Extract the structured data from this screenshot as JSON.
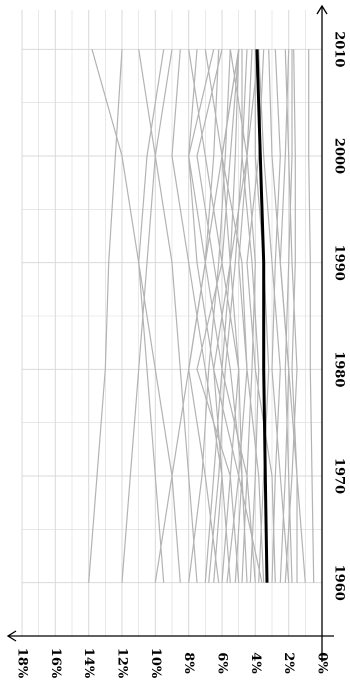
{
  "chart_data": {
    "type": "line",
    "orientation": "rotated-90-clockwise",
    "title": "",
    "xlabel": "",
    "ylabel": "",
    "x": [
      1960,
      1970,
      1980,
      1990,
      2000,
      2010
    ],
    "x_tick_labels": [
      "1960",
      "1970",
      "1980",
      "1990",
      "2000",
      "2010"
    ],
    "xlim": [
      1955,
      2012
    ],
    "y_tick_labels": [
      "0%",
      "2%",
      "4%",
      "6%",
      "8%",
      "10%",
      "12%",
      "14%",
      "16%",
      "18%"
    ],
    "ylim": [
      0,
      18
    ],
    "grid": true,
    "legend": "none",
    "colors": {
      "background_series": "#b3b3b3",
      "highlight_series": "#000000",
      "grid": "#d9d9d9",
      "axis": "#000000"
    },
    "highlight_series": {
      "values": [
        3.3,
        3.4,
        3.5,
        3.5,
        3.7,
        3.9
      ]
    },
    "series": [
      {
        "values": [
          14.0,
          null,
          13.0,
          12.8,
          null,
          12.0
        ]
      },
      {
        "values": [
          12.0,
          11.5,
          11.0,
          10.5,
          10.0,
          9.0
        ]
      },
      {
        "values": [
          9.5,
          10.0,
          10.5,
          11.0,
          12.0,
          13.8
        ]
      },
      {
        "values": [
          10.0,
          9.0,
          8.0,
          7.0,
          6.0,
          5.0
        ]
      },
      {
        "values": [
          8.5,
          9.0,
          10.0,
          11.0,
          10.5,
          9.5
        ]
      },
      {
        "values": [
          7.5,
          8.0,
          8.5,
          9.0,
          10.0,
          11.0
        ]
      },
      {
        "values": [
          7.0,
          6.5,
          6.0,
          5.5,
          5.2,
          5.0
        ]
      },
      {
        "values": [
          6.5,
          6.0,
          7.0,
          8.0,
          9.0,
          8.5
        ]
      },
      {
        "values": [
          6.2,
          7.0,
          8.0,
          7.0,
          6.5,
          6.2
        ]
      },
      {
        "values": [
          6.0,
          5.5,
          5.0,
          6.0,
          7.0,
          8.0
        ]
      },
      {
        "values": [
          5.7,
          5.0,
          4.5,
          4.8,
          6.0,
          7.0
        ]
      },
      {
        "values": [
          5.5,
          6.0,
          6.5,
          7.5,
          8.0,
          6.5
        ]
      },
      {
        "values": [
          5.2,
          4.8,
          5.5,
          6.5,
          7.5,
          6.0
        ]
      },
      {
        "values": [
          5.0,
          5.5,
          7.5,
          6.0,
          5.5,
          5.0
        ]
      },
      {
        "values": [
          4.8,
          4.5,
          4.2,
          4.0,
          4.5,
          5.5
        ]
      },
      {
        "values": [
          4.5,
          4.8,
          5.0,
          5.5,
          6.0,
          5.0
        ]
      },
      {
        "values": [
          4.3,
          4.0,
          3.8,
          4.2,
          4.8,
          4.5
        ]
      },
      {
        "values": [
          4.0,
          4.5,
          6.0,
          7.0,
          8.0,
          7.5
        ]
      },
      {
        "values": [
          3.8,
          3.5,
          3.2,
          3.5,
          4.0,
          4.0
        ]
      },
      {
        "values": [
          3.5,
          3.8,
          4.5,
          5.0,
          4.5,
          3.8
        ]
      },
      {
        "values": [
          3.0,
          2.8,
          2.5,
          3.0,
          3.5,
          3.8
        ]
      },
      {
        "values": [
          2.8,
          3.0,
          4.0,
          4.5,
          3.8,
          3.5
        ]
      },
      {
        "values": [
          2.5,
          2.2,
          2.0,
          2.5,
          3.0,
          3.2
        ]
      },
      {
        "values": [
          2.0,
          2.5,
          3.0,
          2.8,
          2.5,
          2.8
        ]
      },
      {
        "values": [
          2.2,
          1.8,
          1.5,
          1.8,
          2.0,
          2.2
        ]
      },
      {
        "values": [
          1.8,
          2.0,
          2.2,
          2.0,
          1.8,
          1.8
        ]
      },
      {
        "values": [
          1.5,
          1.5,
          1.8,
          1.6,
          1.6,
          1.7
        ]
      },
      {
        "values": [
          1.0,
          1.5,
          2.0,
          2.5,
          2.2,
          2.0
        ]
      },
      {
        "values": [
          0.5,
          0.6,
          0.7,
          0.7,
          0.8,
          0.8
        ]
      },
      {
        "values": [
          3.6,
          5.0,
          6.5,
          5.5,
          4.5,
          4.2
        ]
      },
      {
        "values": [
          6.8,
          6.2,
          5.8,
          5.2,
          4.8,
          4.8
        ]
      },
      {
        "values": [
          8.0,
          7.2,
          6.8,
          6.2,
          5.8,
          5.5
        ]
      }
    ]
  }
}
